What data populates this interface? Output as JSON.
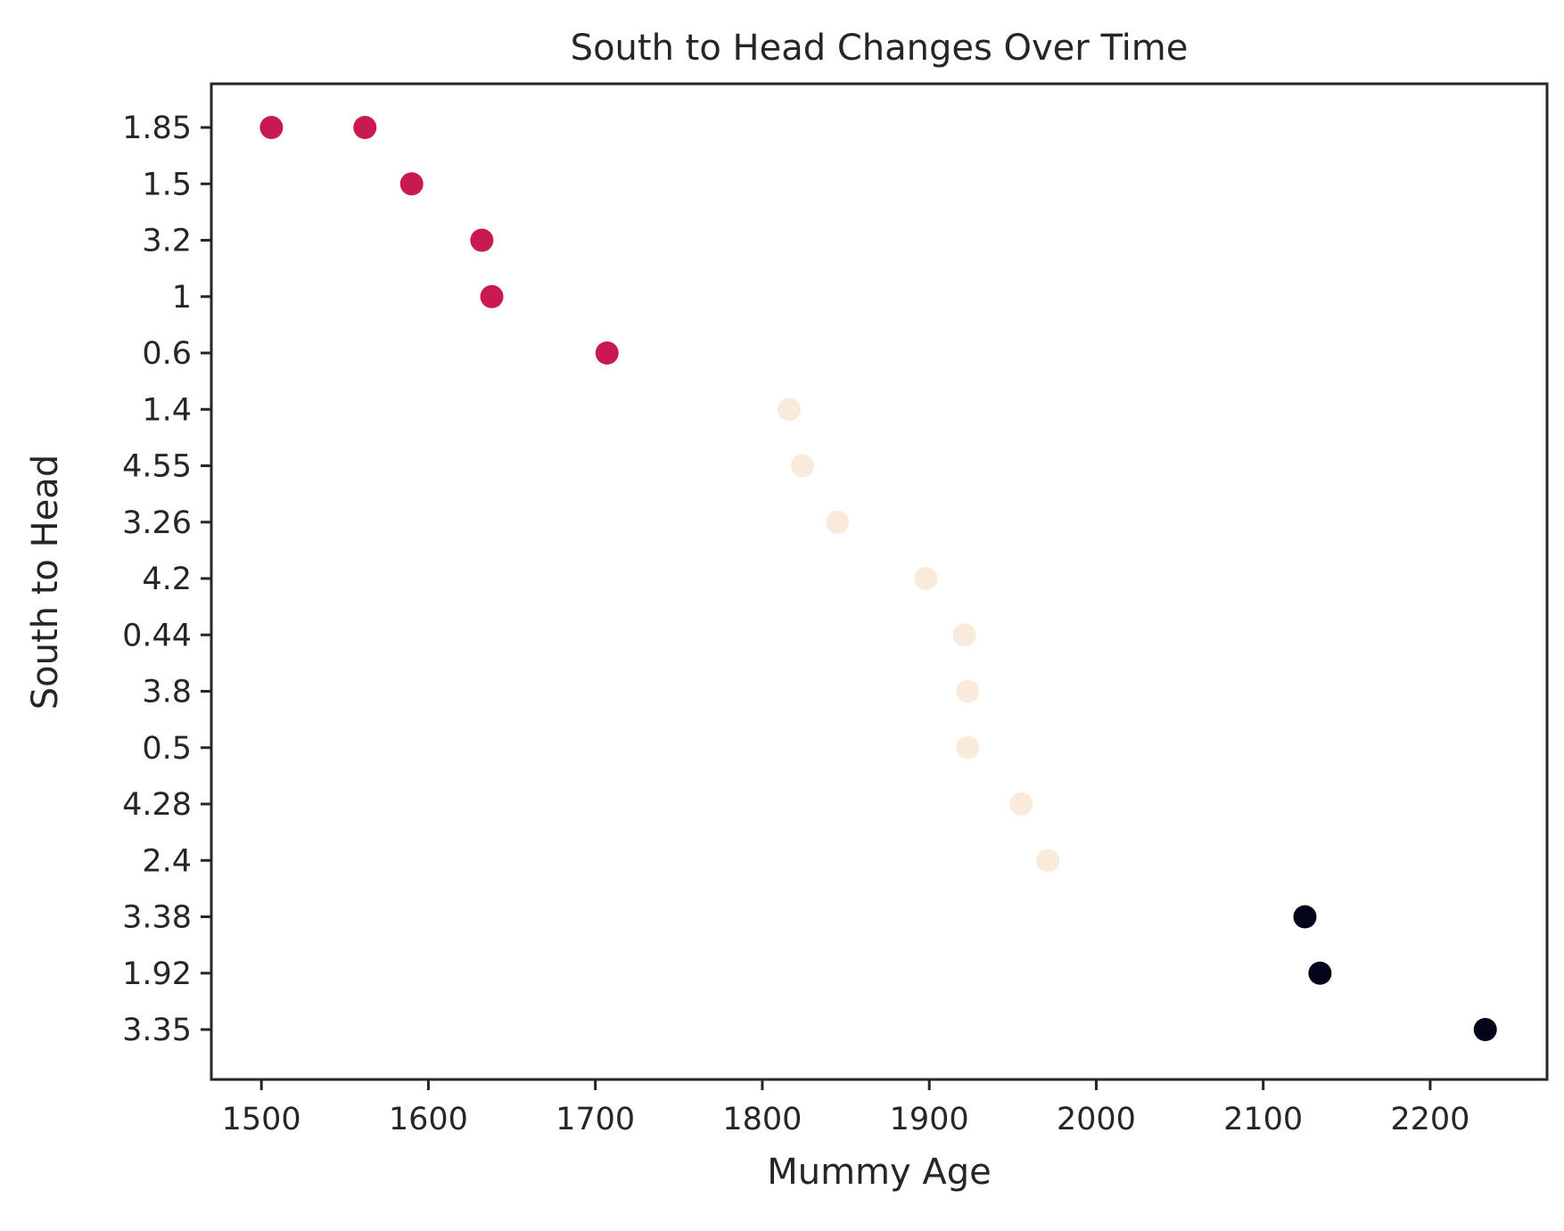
{
  "chart_data": {
    "type": "scatter",
    "title": "South to Head Changes Over Time",
    "xlabel": "Mummy Age",
    "ylabel": "South to Head",
    "xlim": [
      1470,
      2270
    ],
    "x_ticks": [
      1500,
      1600,
      1700,
      1800,
      1900,
      2000,
      2100,
      2200
    ],
    "y_categories": [
      "1.85",
      "1.5",
      "3.2",
      "1",
      "0.6",
      "1.4",
      "4.55",
      "3.26",
      "4.2",
      "0.44",
      "3.8",
      "0.5",
      "4.28",
      "2.4",
      "3.38",
      "1.92",
      "3.35"
    ],
    "grid": false,
    "legend": "none",
    "colors": {
      "group_a": "#c91a4f",
      "group_b": "#faeadc",
      "group_c": "#03051a"
    },
    "points": [
      {
        "x": 1506,
        "y": "1.85",
        "group": "group_a"
      },
      {
        "x": 1562,
        "y": "1.85",
        "group": "group_a"
      },
      {
        "x": 1590,
        "y": "1.5",
        "group": "group_a"
      },
      {
        "x": 1632,
        "y": "3.2",
        "group": "group_a"
      },
      {
        "x": 1638,
        "y": "1",
        "group": "group_a"
      },
      {
        "x": 1707,
        "y": "0.6",
        "group": "group_a"
      },
      {
        "x": 1816,
        "y": "1.4",
        "group": "group_b"
      },
      {
        "x": 1824,
        "y": "4.55",
        "group": "group_b"
      },
      {
        "x": 1845,
        "y": "3.26",
        "group": "group_b"
      },
      {
        "x": 1898,
        "y": "4.2",
        "group": "group_b"
      },
      {
        "x": 1921,
        "y": "0.44",
        "group": "group_b"
      },
      {
        "x": 1923,
        "y": "3.8",
        "group": "group_b"
      },
      {
        "x": 1923,
        "y": "0.5",
        "group": "group_b"
      },
      {
        "x": 1955,
        "y": "4.28",
        "group": "group_b"
      },
      {
        "x": 1971,
        "y": "2.4",
        "group": "group_b"
      },
      {
        "x": 2125,
        "y": "3.38",
        "group": "group_c"
      },
      {
        "x": 2134,
        "y": "1.92",
        "group": "group_c"
      },
      {
        "x": 2233,
        "y": "3.35",
        "group": "group_c"
      }
    ]
  }
}
